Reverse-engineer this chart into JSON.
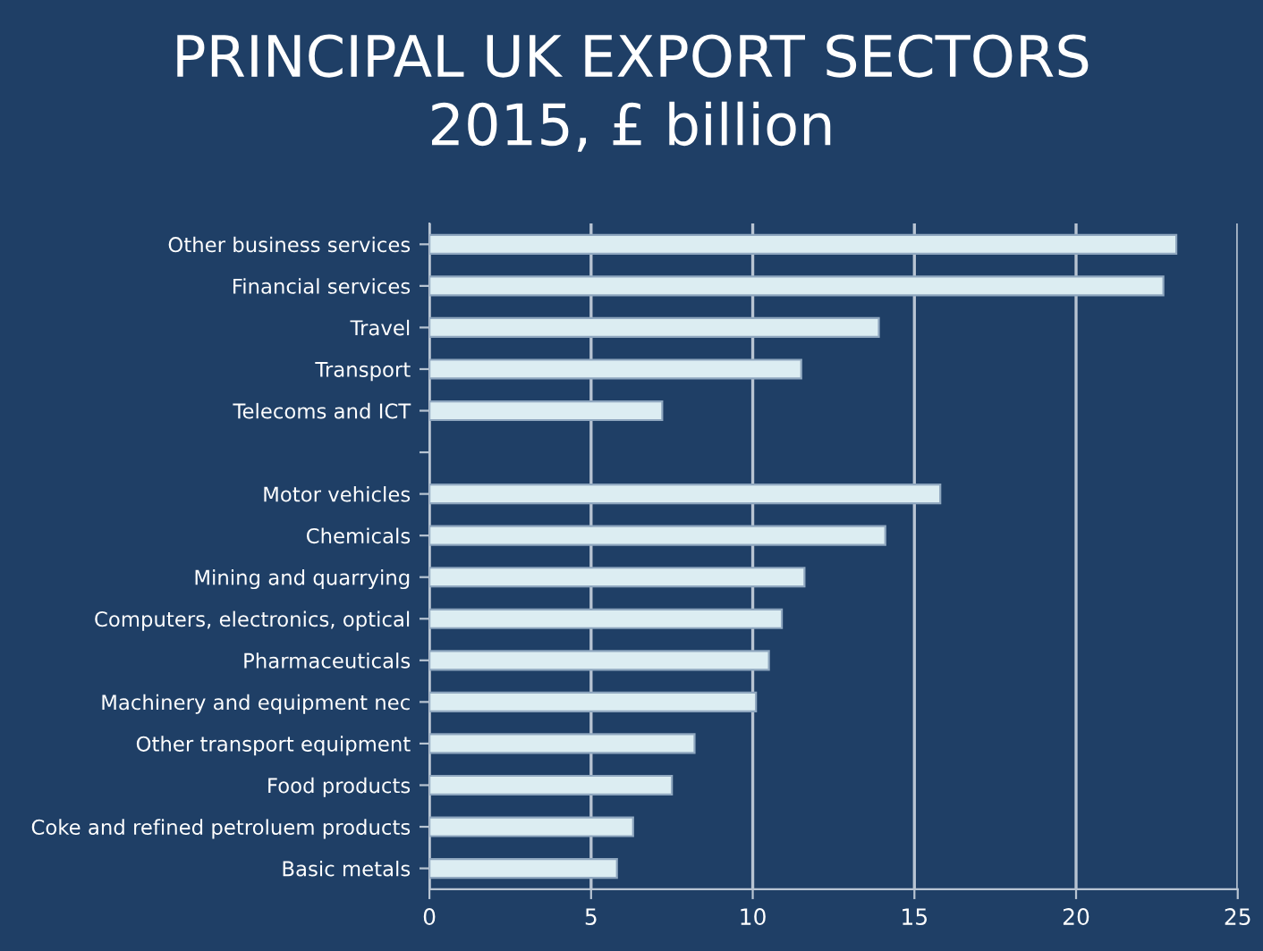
{
  "chart_data": {
    "type": "bar",
    "orientation": "horizontal",
    "title": "PRINCIPAL UK EXPORT SECTORS\n2015, £ billion",
    "categories": [
      "Other business services",
      "Financial services",
      "Travel",
      "Transport",
      "Telecoms and ICT",
      null,
      "Motor vehicles",
      "Chemicals",
      "Mining and quarrying",
      "Computers, electronics, optical",
      "Pharmaceuticals",
      "Machinery and equipment nec",
      "Other transport equipment",
      "Food products",
      "Coke and refined petroluem products",
      "Basic metals"
    ],
    "values": [
      23.1,
      22.7,
      13.9,
      11.5,
      7.2,
      null,
      15.8,
      14.1,
      11.6,
      10.9,
      10.5,
      10.1,
      8.2,
      7.5,
      6.3,
      5.8
    ],
    "color": "#dcedf2",
    "xlim": [
      0,
      25
    ],
    "xticks": [
      0,
      5,
      10,
      15,
      20,
      25
    ],
    "grid": "x"
  }
}
